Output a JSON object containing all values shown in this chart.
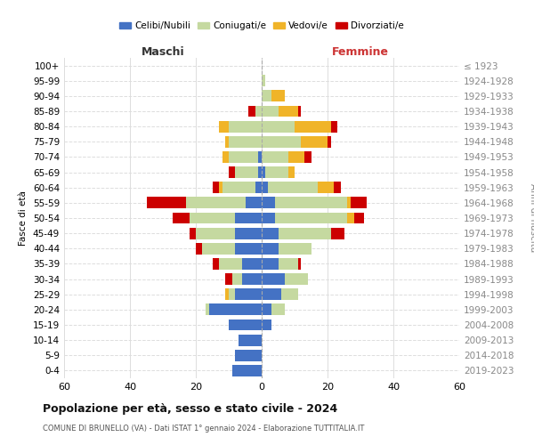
{
  "age_groups": [
    "0-4",
    "5-9",
    "10-14",
    "15-19",
    "20-24",
    "25-29",
    "30-34",
    "35-39",
    "40-44",
    "45-49",
    "50-54",
    "55-59",
    "60-64",
    "65-69",
    "70-74",
    "75-79",
    "80-84",
    "85-89",
    "90-94",
    "95-99",
    "100+"
  ],
  "birth_years": [
    "2019-2023",
    "2014-2018",
    "2009-2013",
    "2004-2008",
    "1999-2003",
    "1994-1998",
    "1989-1993",
    "1984-1988",
    "1979-1983",
    "1974-1978",
    "1969-1973",
    "1964-1968",
    "1959-1963",
    "1954-1958",
    "1949-1953",
    "1944-1948",
    "1939-1943",
    "1934-1938",
    "1929-1933",
    "1924-1928",
    "≤ 1923"
  ],
  "colors": {
    "celibi": "#4472c4",
    "coniugati": "#c5d9a0",
    "vedovi": "#f0b429",
    "divorziati": "#cc0000"
  },
  "maschi": {
    "celibi": [
      9,
      8,
      7,
      10,
      16,
      8,
      6,
      6,
      8,
      8,
      8,
      5,
      2,
      1,
      1,
      0,
      0,
      0,
      0,
      0,
      0
    ],
    "coniugati": [
      0,
      0,
      0,
      0,
      1,
      2,
      3,
      7,
      10,
      12,
      14,
      18,
      10,
      7,
      9,
      10,
      10,
      2,
      0,
      0,
      0
    ],
    "vedovi": [
      0,
      0,
      0,
      0,
      0,
      1,
      0,
      0,
      0,
      0,
      0,
      0,
      1,
      0,
      2,
      1,
      3,
      0,
      0,
      0,
      0
    ],
    "divorziati": [
      0,
      0,
      0,
      0,
      0,
      0,
      2,
      2,
      2,
      2,
      5,
      12,
      2,
      2,
      0,
      0,
      0,
      2,
      0,
      0,
      0
    ]
  },
  "femmine": {
    "celibi": [
      0,
      0,
      0,
      3,
      3,
      6,
      7,
      5,
      5,
      5,
      4,
      4,
      2,
      1,
      0,
      0,
      0,
      0,
      0,
      0,
      0
    ],
    "coniugati": [
      0,
      0,
      0,
      0,
      4,
      5,
      7,
      6,
      10,
      16,
      22,
      22,
      15,
      7,
      8,
      12,
      10,
      5,
      3,
      1,
      0
    ],
    "vedovi": [
      0,
      0,
      0,
      0,
      0,
      0,
      0,
      0,
      0,
      0,
      2,
      1,
      5,
      2,
      5,
      8,
      11,
      6,
      4,
      0,
      0
    ],
    "divorziati": [
      0,
      0,
      0,
      0,
      0,
      0,
      0,
      1,
      0,
      4,
      3,
      5,
      2,
      0,
      2,
      1,
      2,
      1,
      0,
      0,
      0
    ]
  },
  "xlim": 60,
  "xticks": [
    -60,
    -40,
    -20,
    0,
    20,
    40,
    60
  ],
  "xticklabels": [
    "60",
    "40",
    "20",
    "0",
    "20",
    "40",
    "60"
  ],
  "title_main": "Popolazione per età, sesso e stato civile - 2024",
  "title_sub1": "COMUNE DI BRUNELLO (VA) - Dati ISTAT 1° gennaio 2024 - Elaborazione TUTTITALIA.IT",
  "ylabel_left": "Fasce di età",
  "ylabel_right": "Anni di nascita",
  "label_maschi": "Maschi",
  "label_femmine": "Femmine",
  "legend_labels": [
    "Celibi/Nubili",
    "Coniugati/e",
    "Vedovi/e",
    "Divorziati/e"
  ],
  "bg_color": "#ffffff",
  "grid_color": "#dddddd",
  "maschi_label_color": "#333333",
  "femmine_label_color": "#cc3333"
}
